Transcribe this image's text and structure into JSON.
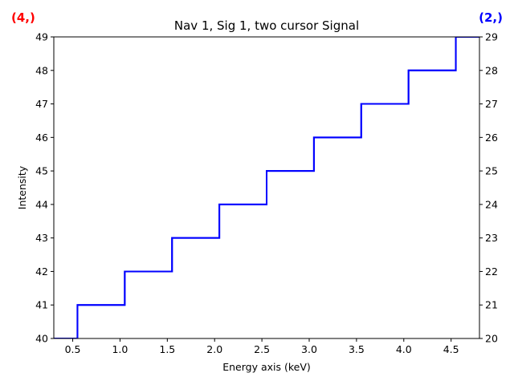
{
  "chart_data": {
    "type": "line",
    "title": "Nav 1, Sig 1, two cursor Signal",
    "xlabel": "Energy axis (keV)",
    "ylabel": "Intensity",
    "xlim": [
      0.3,
      4.8
    ],
    "ylim": [
      40,
      49
    ],
    "y2lim": [
      20,
      29
    ],
    "grid": false,
    "step": "post",
    "x_ticks": [
      0.5,
      1.0,
      1.5,
      2.0,
      2.5,
      3.0,
      3.5,
      4.0,
      4.5
    ],
    "x_tick_labels": [
      "0.5",
      "1.0",
      "1.5",
      "2.0",
      "2.5",
      "3.0",
      "3.5",
      "4.0",
      "4.5"
    ],
    "y_ticks": [
      40,
      41,
      42,
      43,
      44,
      45,
      46,
      47,
      48,
      49
    ],
    "y_tick_labels": [
      "40",
      "41",
      "42",
      "43",
      "44",
      "45",
      "46",
      "47",
      "48",
      "49"
    ],
    "y2_ticks": [
      20,
      21,
      22,
      23,
      24,
      25,
      26,
      27,
      28,
      29
    ],
    "y2_tick_labels": [
      "20",
      "21",
      "22",
      "23",
      "24",
      "25",
      "26",
      "27",
      "28",
      "29"
    ],
    "series": [
      {
        "color": "#0000ff",
        "x": [
          0.05,
          0.55,
          1.05,
          1.55,
          2.05,
          2.55,
          3.05,
          3.55,
          4.05,
          4.55
        ],
        "values": [
          40,
          41,
          42,
          43,
          44,
          45,
          46,
          47,
          48,
          49
        ],
        "x_end": 5.05
      },
      {
        "color": "#0000ff",
        "x": [
          0.05,
          0.55,
          1.05,
          1.55,
          2.05,
          2.55,
          3.05,
          3.55,
          4.05,
          4.55
        ],
        "values": [
          20,
          21,
          22,
          23,
          24,
          25,
          26,
          27,
          28,
          29
        ],
        "x_end": 5.05,
        "axis": "right"
      }
    ],
    "cursor_labels": {
      "left": {
        "text": "(4,)",
        "color": "#ff0000"
      },
      "right": {
        "text": "(2,)",
        "color": "#0000ff"
      }
    }
  }
}
